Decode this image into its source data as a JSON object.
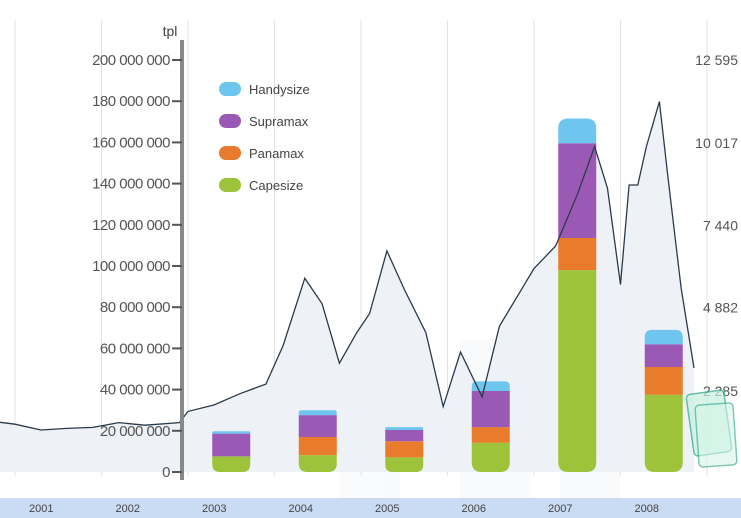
{
  "chart_data": {
    "type": "bar",
    "unit_label": "tpl",
    "categories": [
      "2001",
      "2002",
      "2003",
      "2004",
      "2005",
      "2006",
      "2007",
      "2008"
    ],
    "series": [
      {
        "name": "Capesize",
        "values": [
          0,
          0,
          7600000,
          8200000,
          7100000,
          14200000,
          98000000,
          37500000
        ],
        "color": "#9dc33a"
      },
      {
        "name": "Panamax",
        "values": [
          0,
          0,
          0,
          8800000,
          7800000,
          7600000,
          15600000,
          13500000
        ],
        "color": "#e87b2c"
      },
      {
        "name": "Supramax",
        "values": [
          0,
          0,
          11000000,
          10600000,
          5500000,
          17500000,
          46000000,
          11000000
        ],
        "color": "#9b59b6"
      },
      {
        "name": "Handysize",
        "values": [
          0,
          0,
          1200000,
          2400000,
          1400000,
          4700000,
          12000000,
          7000000
        ],
        "color": "#6ec6ee"
      }
    ],
    "ylim": [
      0,
      200000000
    ],
    "yticks": [
      "0",
      "20 000 000",
      "40 000 000",
      "60 000 000",
      "80 000 000",
      "100 000 000",
      "120 000 000",
      "140 000 000",
      "160 000 000",
      "180 000 000",
      "200 000 000"
    ],
    "y2ticks": [
      "2 285",
      "4 882",
      "7 440",
      "10 017",
      "12 595"
    ],
    "y2values": [
      2285,
      4882,
      7440,
      10017,
      12595
    ],
    "y2lim": [
      -238,
      12595
    ],
    "index_line": {
      "x": [
        2000.3,
        2000.5,
        2000.8,
        2001.0,
        2001.3,
        2001.6,
        2001.9,
        2002.2,
        2002.5,
        2002.9,
        2003.0,
        2003.3,
        2003.6,
        2003.9,
        2004.1,
        2004.35,
        2004.55,
        2004.75,
        2004.95,
        2005.1,
        2005.3,
        2005.5,
        2005.75,
        2005.95,
        2006.15,
        2006.4,
        2006.6,
        2006.8,
        2007.0,
        2007.25,
        2007.5,
        2007.7,
        2007.85,
        2008.0,
        2008.1,
        2008.2,
        2008.3,
        2008.45,
        2008.55,
        2008.7,
        2008.85
      ],
      "values": [
        1600,
        1500,
        1320,
        1250,
        1070,
        1120,
        1150,
        1300,
        1220,
        1300,
        1650,
        1850,
        2200,
        2500,
        3700,
        5800,
        5000,
        3150,
        4100,
        4700,
        6650,
        5450,
        4100,
        1800,
        3500,
        2100,
        4300,
        5200,
        6100,
        6800,
        8400,
        9900,
        8600,
        5600,
        8700,
        8700,
        9900,
        11300,
        8900,
        5500,
        3000
      ]
    },
    "grid_x": true,
    "grid_y": false,
    "legend_position": "top-left"
  }
}
